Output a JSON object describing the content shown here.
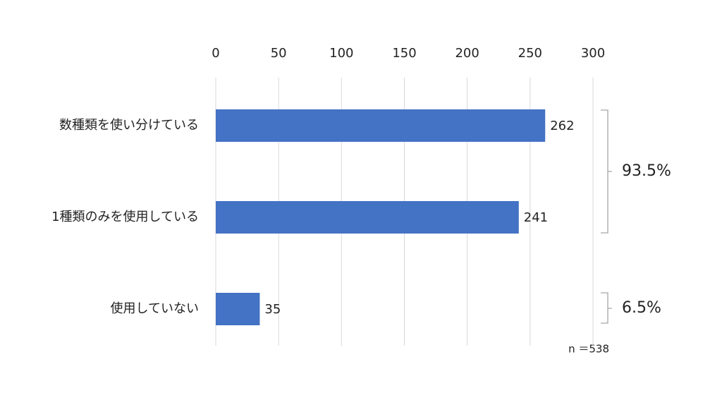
{
  "chart_data": {
    "type": "barh",
    "categories": [
      "数種類を使い分けている",
      "1種類のみを使用している",
      "使用していない"
    ],
    "values": [
      262,
      241,
      35
    ],
    "color": "#4472c4",
    "xlim": [
      0,
      300
    ],
    "xticks": [
      0,
      50,
      100,
      150,
      200,
      250,
      300
    ],
    "grid": true,
    "annotations": [
      "93.5%",
      "6.5%",
      "n ＝538"
    ]
  }
}
